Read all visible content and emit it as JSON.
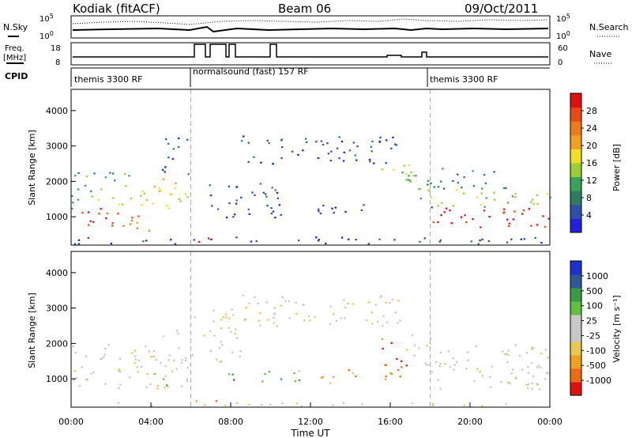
{
  "header": {
    "station": "Kodiak (fitACF)",
    "beam": "Beam 06",
    "date": "09/Oct/2011"
  },
  "panels": {
    "nsky_label": "N.Sky",
    "nsearch_label": "N.Search",
    "freq_label_1": "Freq.",
    "freq_label_2": "[MHz]",
    "nave_label": "Nave",
    "cpid_label": "CPID",
    "nsky_ticks": [
      "10^5",
      "10^0"
    ],
    "nsearch_ticks": [
      "10^5",
      "10^0"
    ],
    "freq_ticks": [
      "18",
      "8"
    ],
    "nave_ticks": [
      "60",
      "0"
    ]
  },
  "cpid_segments": [
    {
      "start": 0,
      "end": 6,
      "label": "themis 3300 RF"
    },
    {
      "start": 6,
      "end": 18,
      "label": "normalsound (fast) 157 RF"
    },
    {
      "start": 18,
      "end": 24,
      "label": "themis 3300 RF"
    }
  ],
  "colors": {
    "power": [
      "#1f20e0",
      "#2f50a8",
      "#2e7d5e",
      "#3aa35a",
      "#9ccd32",
      "#f0e020",
      "#f0a020",
      "#f07a18",
      "#ea4a10",
      "#e01010"
    ],
    "velocity": [
      "#e01010",
      "#f06a10",
      "#f0a020",
      "#e8c850",
      "#c8c8c4",
      "#c8c8c4",
      "#60c040",
      "#3a9a48",
      "#305898",
      "#2030d0"
    ]
  },
  "chart_data": [
    {
      "type": "heatmap",
      "name": "power",
      "xlabel": "",
      "ylabel": "Slant Range [km]",
      "colorbar_label": "Power [dB]",
      "colorbar_ticks": [
        "28",
        "24",
        "20",
        "16",
        "12",
        "8",
        "4"
      ],
      "xlim": [
        0,
        24
      ],
      "ylim": [
        200,
        4600
      ],
      "yticks": [
        "1000",
        "2000",
        "3000",
        "4000"
      ],
      "regions": [
        {
          "x0": 0,
          "x1": 2.5,
          "y0": 700,
          "y1": 1300,
          "level": 8
        },
        {
          "x0": 2.5,
          "x1": 4,
          "y0": 600,
          "y1": 1200,
          "level": 7
        },
        {
          "x0": 0,
          "x1": 4,
          "y0": 1300,
          "y1": 1800,
          "level": 4
        },
        {
          "x0": 0,
          "x1": 3,
          "y0": 1800,
          "y1": 2300,
          "level": 3
        },
        {
          "x0": 4,
          "x1": 5.9,
          "y0": 1100,
          "y1": 2100,
          "level": 5
        },
        {
          "x0": 4.5,
          "x1": 5.9,
          "y0": 2200,
          "y1": 3300,
          "level": 1
        },
        {
          "x0": 6.2,
          "x1": 7.2,
          "y0": 300,
          "y1": 500,
          "level": 9
        },
        {
          "x0": 6.5,
          "x1": 10.5,
          "y0": 1000,
          "y1": 2000,
          "level": 1
        },
        {
          "x0": 8.5,
          "x1": 16.5,
          "y0": 2500,
          "y1": 3300,
          "level": 1
        },
        {
          "x0": 12,
          "x1": 15,
          "y0": 1100,
          "y1": 1500,
          "level": 1
        },
        {
          "x0": 15.5,
          "x1": 17.5,
          "y0": 1500,
          "y1": 2500,
          "level": 4
        },
        {
          "x0": 17.8,
          "x1": 24,
          "y0": 700,
          "y1": 1300,
          "level": 9
        },
        {
          "x0": 17.8,
          "x1": 24,
          "y0": 1300,
          "y1": 1800,
          "level": 4
        },
        {
          "x0": 17.8,
          "x1": 22,
          "y0": 1800,
          "y1": 2400,
          "level": 2
        },
        {
          "x0": 0,
          "x1": 24,
          "y0": 250,
          "y1": 450,
          "level": 1
        }
      ]
    },
    {
      "type": "heatmap",
      "name": "velocity",
      "xlabel": "Time UT",
      "ylabel": "Slant Range [km]",
      "colorbar_label": "Velocity [m s⁻¹]",
      "colorbar_ticks": [
        "1000",
        "500",
        "100",
        "25",
        "-25",
        "-100",
        "-500",
        "-1000"
      ],
      "xlim": [
        0,
        24
      ],
      "ylim": [
        200,
        4600
      ],
      "yticks": [
        "1000",
        "2000",
        "3000",
        "4000"
      ],
      "xticks": [
        "00:00",
        "04:00",
        "08:00",
        "12:00",
        "16:00",
        "20:00",
        "00:00"
      ],
      "regions": [
        {
          "x0": 0,
          "x1": 4.5,
          "y0": 700,
          "y1": 2000,
          "level": 4
        },
        {
          "x0": 4.5,
          "x1": 6,
          "y0": 700,
          "y1": 2400,
          "level": 4
        },
        {
          "x0": 4,
          "x1": 5,
          "y0": 800,
          "y1": 1200,
          "level": 6
        },
        {
          "x0": 6,
          "x1": 8.5,
          "y0": 1500,
          "y1": 3000,
          "level": 4
        },
        {
          "x0": 7.5,
          "x1": 8.2,
          "y0": 800,
          "y1": 1300,
          "level": 7
        },
        {
          "x0": 9,
          "x1": 11.5,
          "y0": 900,
          "y1": 1300,
          "level": 6
        },
        {
          "x0": 12.5,
          "x1": 14.5,
          "y0": 900,
          "y1": 1300,
          "level": 2
        },
        {
          "x0": 8.5,
          "x1": 16.5,
          "y0": 2500,
          "y1": 3400,
          "level": 4
        },
        {
          "x0": 15.3,
          "x1": 16.8,
          "y0": 1000,
          "y1": 2200,
          "level": 1
        },
        {
          "x0": 16.8,
          "x1": 18,
          "y0": 1400,
          "y1": 2300,
          "level": 4
        },
        {
          "x0": 17.8,
          "x1": 24,
          "y0": 700,
          "y1": 2000,
          "level": 4
        },
        {
          "x0": 6,
          "x1": 8,
          "y0": 250,
          "y1": 450,
          "level": 2
        },
        {
          "x0": 0,
          "x1": 24,
          "y0": 250,
          "y1": 350,
          "level": 4
        }
      ]
    }
  ]
}
